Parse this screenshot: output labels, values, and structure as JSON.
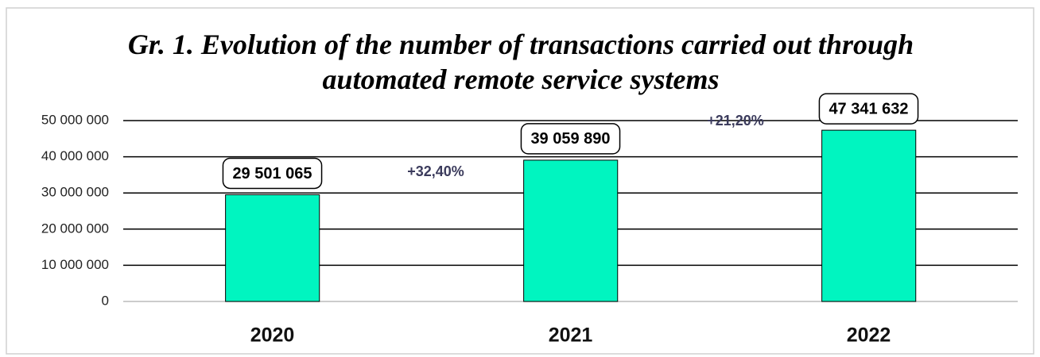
{
  "chart_data": {
    "type": "bar",
    "title": "Gr. 1. Evolution of the number of transactions carried out through automated remote service systems",
    "categories": [
      "2020",
      "2021",
      "2022"
    ],
    "values": [
      29501065,
      39059890,
      47341632
    ],
    "value_labels": [
      "29 501 065",
      "39 059 890",
      "47 341 632"
    ],
    "color": "#00f5c0",
    "ylim": [
      0,
      50000000
    ],
    "yticks": [
      0,
      {
        "value": 10000000,
        "label": "10 000 000"
      },
      {
        "value": 20000000,
        "label": "20 000 000"
      },
      {
        "value": 30000000,
        "label": "30 000 000"
      },
      {
        "value": 40000000,
        "label": "40 000 000"
      },
      {
        "value": 50000000,
        "label": "50 000 000"
      }
    ],
    "grid": true,
    "annotations": [
      "+32,40%",
      "+21,20%"
    ]
  }
}
